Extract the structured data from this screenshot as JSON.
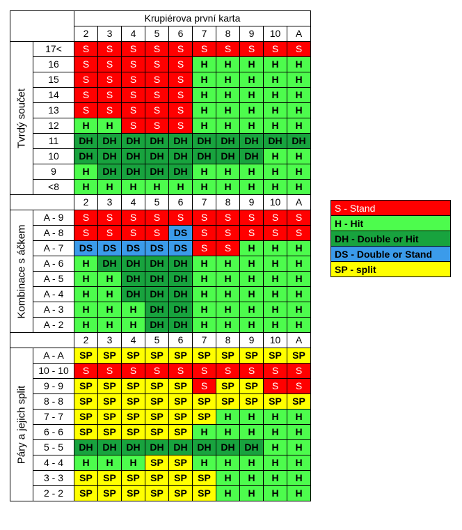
{
  "title": "Krupiérova první karta",
  "dealer_cards": [
    "2",
    "3",
    "4",
    "5",
    "6",
    "7",
    "8",
    "9",
    "10",
    "A"
  ],
  "sections": [
    {
      "label": "Tvrdý součet",
      "rows": [
        {
          "label": "17<",
          "cells": [
            "S",
            "S",
            "S",
            "S",
            "S",
            "S",
            "S",
            "S",
            "S",
            "S"
          ]
        },
        {
          "label": "16",
          "cells": [
            "S",
            "S",
            "S",
            "S",
            "S",
            "H",
            "H",
            "H",
            "H",
            "H"
          ]
        },
        {
          "label": "15",
          "cells": [
            "S",
            "S",
            "S",
            "S",
            "S",
            "H",
            "H",
            "H",
            "H",
            "H"
          ]
        },
        {
          "label": "14",
          "cells": [
            "S",
            "S",
            "S",
            "S",
            "S",
            "H",
            "H",
            "H",
            "H",
            "H"
          ]
        },
        {
          "label": "13",
          "cells": [
            "S",
            "S",
            "S",
            "S",
            "S",
            "H",
            "H",
            "H",
            "H",
            "H"
          ]
        },
        {
          "label": "12",
          "cells": [
            "H",
            "H",
            "S",
            "S",
            "S",
            "H",
            "H",
            "H",
            "H",
            "H"
          ]
        },
        {
          "label": "11",
          "cells": [
            "DH",
            "DH",
            "DH",
            "DH",
            "DH",
            "DH",
            "DH",
            "DH",
            "DH",
            "DH"
          ]
        },
        {
          "label": "10",
          "cells": [
            "DH",
            "DH",
            "DH",
            "DH",
            "DH",
            "DH",
            "DH",
            "DH",
            "H",
            "H"
          ]
        },
        {
          "label": "9",
          "cells": [
            "H",
            "DH",
            "DH",
            "DH",
            "DH",
            "H",
            "H",
            "H",
            "H",
            "H"
          ]
        },
        {
          "label": "<8",
          "cells": [
            "H",
            "H",
            "H",
            "H",
            "H",
            "H",
            "H",
            "H",
            "H",
            "H"
          ]
        }
      ]
    },
    {
      "label": "Kombinace s áčkem",
      "rows": [
        {
          "label": "A - 9",
          "cells": [
            "S",
            "S",
            "S",
            "S",
            "S",
            "S",
            "S",
            "S",
            "S",
            "S"
          ]
        },
        {
          "label": "A - 8",
          "cells": [
            "S",
            "S",
            "S",
            "S",
            "DS",
            "S",
            "S",
            "S",
            "S",
            "S"
          ]
        },
        {
          "label": "A - 7",
          "cells": [
            "DS",
            "DS",
            "DS",
            "DS",
            "DS",
            "S",
            "S",
            "H",
            "H",
            "H"
          ]
        },
        {
          "label": "A - 6",
          "cells": [
            "H",
            "DH",
            "DH",
            "DH",
            "DH",
            "H",
            "H",
            "H",
            "H",
            "H"
          ]
        },
        {
          "label": "A - 5",
          "cells": [
            "H",
            "H",
            "DH",
            "DH",
            "DH",
            "H",
            "H",
            "H",
            "H",
            "H"
          ]
        },
        {
          "label": "A - 4",
          "cells": [
            "H",
            "H",
            "DH",
            "DH",
            "DH",
            "H",
            "H",
            "H",
            "H",
            "H"
          ]
        },
        {
          "label": "A - 3",
          "cells": [
            "H",
            "H",
            "H",
            "DH",
            "DH",
            "H",
            "H",
            "H",
            "H",
            "H"
          ]
        },
        {
          "label": "A - 2",
          "cells": [
            "H",
            "H",
            "H",
            "DH",
            "DH",
            "H",
            "H",
            "H",
            "H",
            "H"
          ]
        }
      ]
    },
    {
      "label": "Páry a jejich split",
      "rows": [
        {
          "label": "A - A",
          "cells": [
            "SP",
            "SP",
            "SP",
            "SP",
            "SP",
            "SP",
            "SP",
            "SP",
            "SP",
            "SP"
          ]
        },
        {
          "label": "10 - 10",
          "cells": [
            "S",
            "S",
            "S",
            "S",
            "S",
            "S",
            "S",
            "S",
            "S",
            "S"
          ]
        },
        {
          "label": "9 - 9",
          "cells": [
            "SP",
            "SP",
            "SP",
            "SP",
            "SP",
            "S",
            "SP",
            "SP",
            "S",
            "S"
          ]
        },
        {
          "label": "8 - 8",
          "cells": [
            "SP",
            "SP",
            "SP",
            "SP",
            "SP",
            "SP",
            "SP",
            "SP",
            "SP",
            "SP"
          ]
        },
        {
          "label": "7 - 7",
          "cells": [
            "SP",
            "SP",
            "SP",
            "SP",
            "SP",
            "SP",
            "H",
            "H",
            "H",
            "H"
          ]
        },
        {
          "label": "6 - 6",
          "cells": [
            "SP",
            "SP",
            "SP",
            "SP",
            "SP",
            "H",
            "H",
            "H",
            "H",
            "H"
          ]
        },
        {
          "label": "5 - 5",
          "cells": [
            "DH",
            "DH",
            "DH",
            "DH",
            "DH",
            "DH",
            "DH",
            "DH",
            "H",
            "H"
          ]
        },
        {
          "label": "4 - 4",
          "cells": [
            "H",
            "H",
            "H",
            "SP",
            "SP",
            "H",
            "H",
            "H",
            "H",
            "H"
          ]
        },
        {
          "label": "3 - 3",
          "cells": [
            "SP",
            "SP",
            "SP",
            "SP",
            "SP",
            "SP",
            "H",
            "H",
            "H",
            "H"
          ]
        },
        {
          "label": "2 - 2",
          "cells": [
            "SP",
            "SP",
            "SP",
            "SP",
            "SP",
            "SP",
            "H",
            "H",
            "H",
            "H"
          ]
        }
      ]
    }
  ],
  "cell_text": {
    "S": "S",
    "H": "H",
    "DH": "DH",
    "DS": "DS",
    "SP": "SP"
  },
  "legend": [
    {
      "code": "S",
      "label": "S - Stand"
    },
    {
      "code": "H",
      "label": "H - Hit"
    },
    {
      "code": "DH",
      "label": "DH - Double or Hit"
    },
    {
      "code": "DS",
      "label": "DS - Double or Stand"
    },
    {
      "code": "SP",
      "label": "SP - split"
    }
  ],
  "colors": {
    "S": "#ff0000",
    "H": "#4dfc4d",
    "DH": "#18a33e",
    "DS": "#3b9bea",
    "SP": "#ffff00"
  }
}
